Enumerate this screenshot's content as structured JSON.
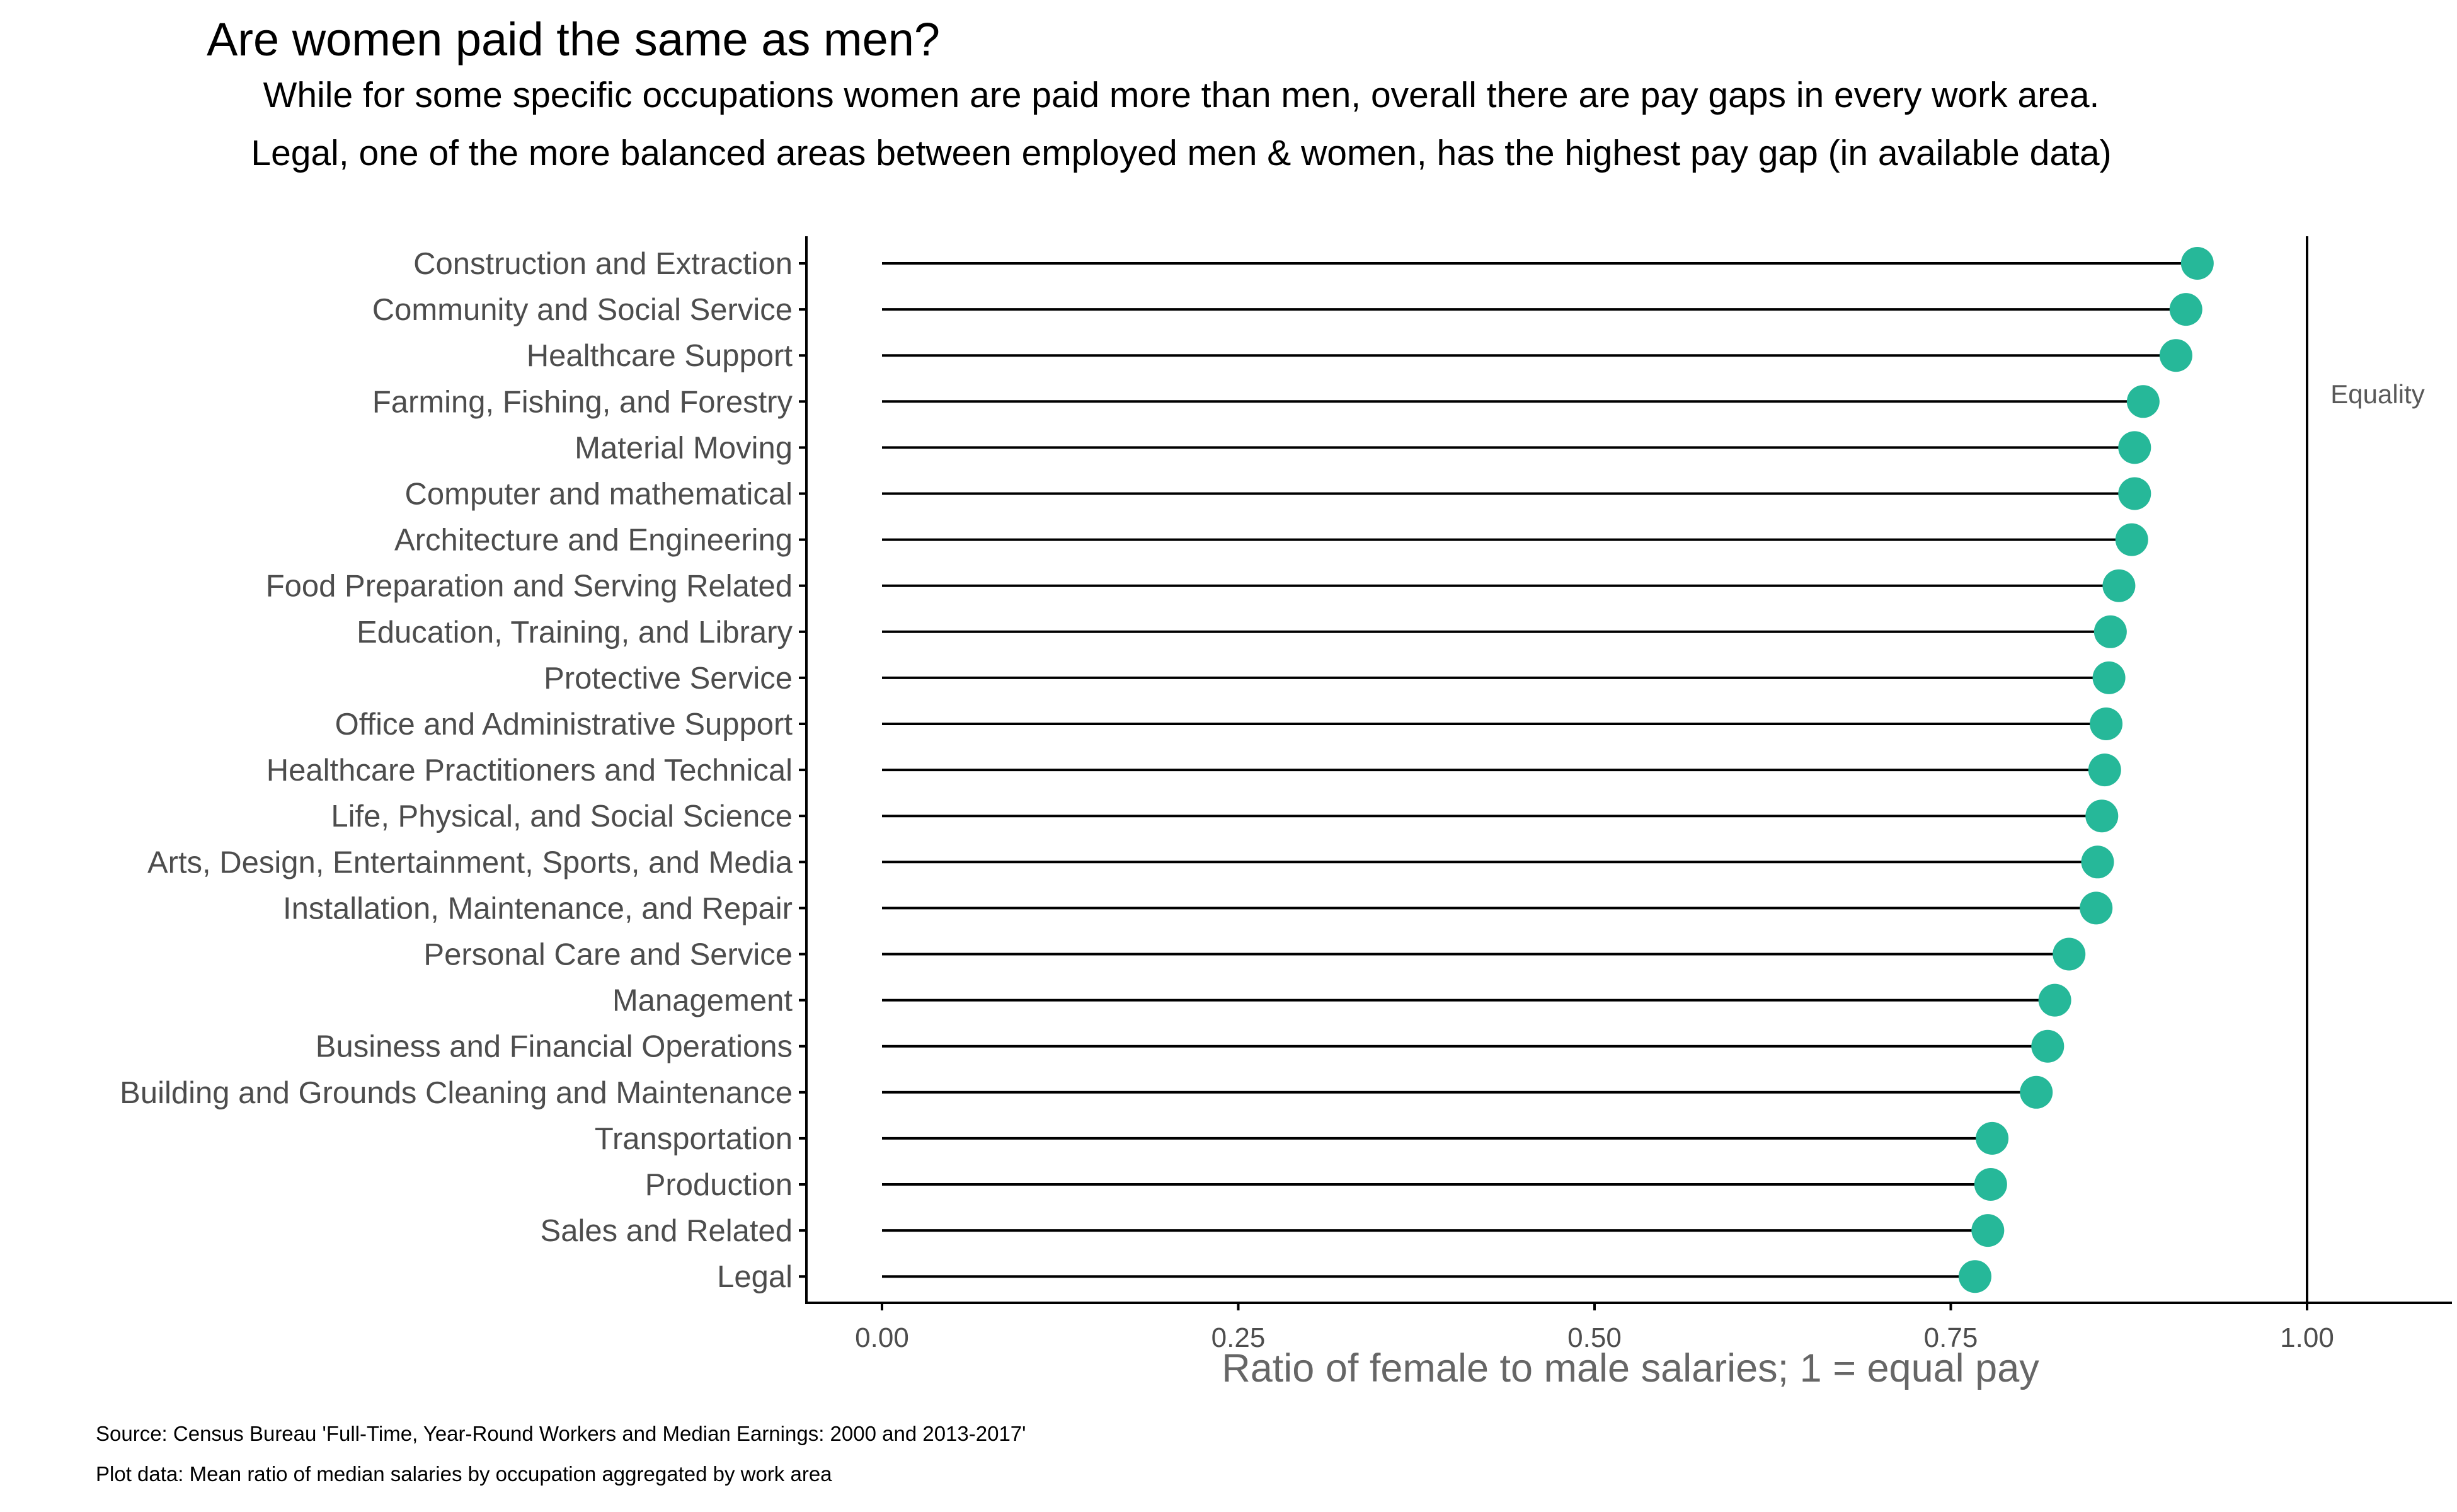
{
  "colors": {
    "dot": "#26b899",
    "segment": "#000000",
    "axis": "#000000",
    "text": "#4d4d4d"
  },
  "chart_data": {
    "type": "lollipop",
    "title": "Are women paid the same as men?",
    "subtitle_lines": [
      "While for some specific occupations women are paid more than men, overall there are pay gaps in every work area.",
      "Legal, one of the more balanced areas between employed men & women, has the highest pay gap (in available data)"
    ],
    "xlabel": "Ratio of female to male salaries; 1 = equal pay",
    "ylabel": "",
    "xlim": [
      -0.053,
      1.103
    ],
    "xticks": [
      0,
      0.25,
      0.5,
      0.75,
      1
    ],
    "xtick_labels": [
      "0.00",
      "0.25",
      "0.50",
      "0.75",
      "1.00"
    ],
    "reference_line": {
      "x": 1.0,
      "label": "Equality"
    },
    "categories": [
      "Construction and Extraction",
      "Community and Social Service",
      "Healthcare Support",
      "Farming, Fishing, and Forestry",
      "Material Moving",
      "Computer and mathematical",
      "Architecture and Engineering",
      "Food Preparation and Serving Related",
      "Education, Training, and Library",
      "Protective Service",
      "Office and Administrative Support",
      "Healthcare Practitioners and Technical",
      "Life, Physical, and Social Science",
      "Arts, Design, Entertainment, Sports, and Media",
      "Installation, Maintenance, and Repair",
      "Personal Care and Service",
      "Management",
      "Business and Financial Operations",
      "Building and Grounds Cleaning and Maintenance",
      "Transportation",
      "Production",
      "Sales and Related",
      "Legal"
    ],
    "values": [
      0.923,
      0.915,
      0.908,
      0.885,
      0.879,
      0.879,
      0.877,
      0.868,
      0.862,
      0.861,
      0.859,
      0.858,
      0.856,
      0.853,
      0.852,
      0.833,
      0.823,
      0.818,
      0.81,
      0.779,
      0.778,
      0.776,
      0.767
    ],
    "grid": false,
    "legend": "none"
  },
  "footer": {
    "source": "Source: Census Bureau 'Full-Time, Year-Round Workers and Median Earnings: 2000 and 2013-2017'",
    "note": "Plot data: Mean ratio of median salaries by occupation aggregated by work area"
  }
}
